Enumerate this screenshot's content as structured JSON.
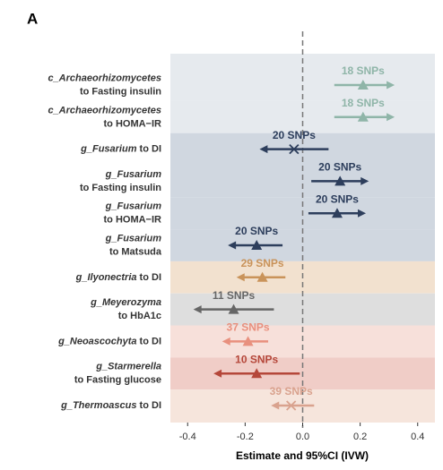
{
  "chart_data": {
    "type": "forest",
    "panel_label": "A",
    "x_label": "Estimate and 95%CI (IVW)",
    "xlim": [
      -0.46,
      0.46
    ],
    "xticks": [
      {
        "value": -0.4,
        "label": "-0.4"
      },
      {
        "value": -0.2,
        "label": "-0.2"
      },
      {
        "value": 0,
        "label": "0.0"
      },
      {
        "value": 0.2,
        "label": "0.2"
      },
      {
        "value": 0.4,
        "label": "0.4"
      }
    ],
    "ref_line": 0,
    "rows": [
      {
        "label_lines": [
          [
            {
              "text": "c_Archaeorhizomycetes",
              "italic": true
            }
          ],
          [
            {
              "text": "to Fasting insulin",
              "italic": false
            }
          ]
        ],
        "estimate": 0.21,
        "ci_low": 0.11,
        "ci_high": 0.32,
        "snps": "18 SNPs",
        "marker": "triangle",
        "color": "#8fb5a8",
        "band_color": "#e6eaee"
      },
      {
        "label_lines": [
          [
            {
              "text": "c_Archaeorhizomycetes",
              "italic": true
            }
          ],
          [
            {
              "text": "to HOMA−IR",
              "italic": false
            }
          ]
        ],
        "estimate": 0.21,
        "ci_low": 0.11,
        "ci_high": 0.32,
        "snps": "18 SNPs",
        "marker": "triangle",
        "color": "#8fb5a8",
        "band_color": "#e6eaee"
      },
      {
        "label_lines": [
          [
            {
              "text": "g_Fusarium",
              "italic": true
            },
            {
              "text": " to DI",
              "italic": false
            }
          ]
        ],
        "estimate": -0.03,
        "ci_low": -0.15,
        "ci_high": 0.09,
        "snps": "20 SNPs",
        "marker": "cross",
        "color": "#2d3e5c",
        "band_color": "#d0d7e0"
      },
      {
        "label_lines": [
          [
            {
              "text": "g_Fusarium",
              "italic": true
            }
          ],
          [
            {
              "text": "to Fasting insulin",
              "italic": false
            }
          ]
        ],
        "estimate": 0.13,
        "ci_low": 0.03,
        "ci_high": 0.23,
        "snps": "20 SNPs",
        "marker": "triangle",
        "color": "#2d3e5c",
        "band_color": "#d0d7e0"
      },
      {
        "label_lines": [
          [
            {
              "text": "g_Fusarium",
              "italic": true
            }
          ],
          [
            {
              "text": "to  HOMA−IR",
              "italic": false
            }
          ]
        ],
        "estimate": 0.12,
        "ci_low": 0.02,
        "ci_high": 0.22,
        "snps": "20 SNPs",
        "marker": "triangle",
        "color": "#2d3e5c",
        "band_color": "#d0d7e0"
      },
      {
        "label_lines": [
          [
            {
              "text": "g_Fusarium",
              "italic": true
            }
          ],
          [
            {
              "text": "to Matsuda",
              "italic": false
            }
          ]
        ],
        "estimate": -0.16,
        "ci_low": -0.26,
        "ci_high": -0.07,
        "snps": "20 SNPs",
        "marker": "triangle",
        "color": "#2d3e5c",
        "band_color": "#d0d7e0"
      },
      {
        "label_lines": [
          [
            {
              "text": "g_Ilyonectria",
              "italic": true
            },
            {
              "text": " to DI",
              "italic": false
            }
          ]
        ],
        "estimate": -0.14,
        "ci_low": -0.23,
        "ci_high": -0.06,
        "snps": "29 SNPs",
        "marker": "triangle",
        "color": "#c9935a",
        "band_color": "#f2e1cf"
      },
      {
        "label_lines": [
          [
            {
              "text": "g_Meyerozyma",
              "italic": true
            }
          ],
          [
            {
              "text": "to HbA1c",
              "italic": false
            }
          ]
        ],
        "estimate": -0.24,
        "ci_low": -0.38,
        "ci_high": -0.1,
        "snps": "11 SNPs",
        "marker": "triangle",
        "color": "#666666",
        "band_color": "#dedede"
      },
      {
        "label_lines": [
          [
            {
              "text": "g_Neoascochyta",
              "italic": true
            },
            {
              "text": " to DI",
              "italic": false
            }
          ]
        ],
        "estimate": -0.19,
        "ci_low": -0.28,
        "ci_high": -0.12,
        "snps": "37 SNPs",
        "marker": "triangle",
        "color": "#e8907e",
        "band_color": "#f7e0da"
      },
      {
        "label_lines": [
          [
            {
              "text": "g_Starmerella",
              "italic": true
            }
          ],
          [
            {
              "text": "to Fasting glucose",
              "italic": false
            }
          ]
        ],
        "estimate": -0.16,
        "ci_low": -0.31,
        "ci_high": -0.01,
        "snps": "10 SNPs",
        "marker": "triangle",
        "color": "#b5473a",
        "band_color": "#f0cdc7"
      },
      {
        "label_lines": [
          [
            {
              "text": "g_Thermoascus",
              "italic": true
            },
            {
              "text": " to DI",
              "italic": false
            }
          ]
        ],
        "estimate": -0.04,
        "ci_low": -0.11,
        "ci_high": 0.04,
        "snps": "39 SNPs",
        "marker": "cross",
        "color": "#d9a28e",
        "band_color": "#f6e5dc"
      }
    ]
  }
}
